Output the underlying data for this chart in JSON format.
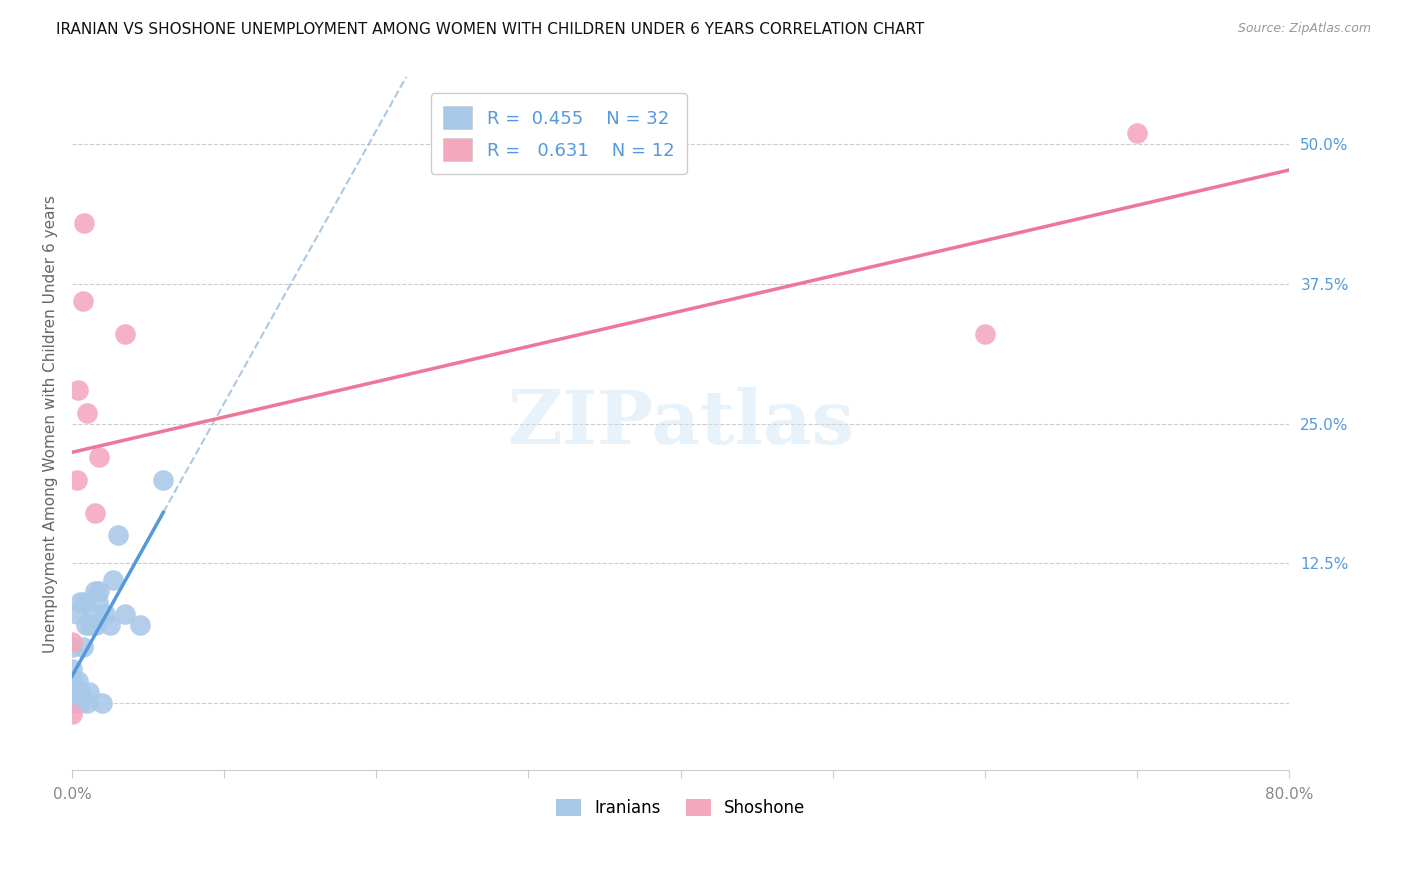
{
  "title": "IRANIAN VS SHOSHONE UNEMPLOYMENT AMONG WOMEN WITH CHILDREN UNDER 6 YEARS CORRELATION CHART",
  "source": "Source: ZipAtlas.com",
  "ylabel": "Unemployment Among Women with Children Under 6 years",
  "watermark": "ZIPatlas",
  "legend_iranian_R": "0.455",
  "legend_iranian_N": "32",
  "legend_shoshone_R": "0.631",
  "legend_shoshone_N": "12",
  "iranian_color": "#a8c8e8",
  "shoshone_color": "#f4a8be",
  "iranian_line_color": "#5599dd",
  "shoshone_line_color": "#ee7799",
  "dashed_line_color": "#99bbdd",
  "right_ytick_color": "#5599dd",
  "yticks_right": [
    0.0,
    0.125,
    0.25,
    0.375,
    0.5
  ],
  "ytick_labels_right": [
    "",
    "12.5%",
    "25.0%",
    "37.5%",
    "50.0%"
  ],
  "xlim": [
    0.0,
    0.8
  ],
  "ylim": [
    -0.06,
    0.56
  ],
  "xtick_vals": [
    0.0,
    0.1,
    0.2,
    0.3,
    0.4,
    0.5,
    0.6,
    0.7,
    0.8
  ],
  "xtick_show": [
    "0.0%",
    "",
    "",
    "",
    "",
    "",
    "",
    "",
    "80.0%"
  ],
  "iranian_x": [
    0.0,
    0.0,
    0.0,
    0.0,
    0.0,
    0.0,
    0.002,
    0.003,
    0.003,
    0.004,
    0.005,
    0.005,
    0.005,
    0.007,
    0.008,
    0.009,
    0.01,
    0.011,
    0.012,
    0.013,
    0.015,
    0.016,
    0.017,
    0.018,
    0.02,
    0.022,
    0.025,
    0.027,
    0.03,
    0.035,
    0.045,
    0.06
  ],
  "iranian_y": [
    0.0,
    0.005,
    0.01,
    0.02,
    0.03,
    0.05,
    0.0,
    0.01,
    0.08,
    0.02,
    0.0,
    0.01,
    0.09,
    0.05,
    0.09,
    0.07,
    0.0,
    0.01,
    0.07,
    0.08,
    0.1,
    0.07,
    0.09,
    0.1,
    0.0,
    0.08,
    0.07,
    0.11,
    0.15,
    0.08,
    0.07,
    0.2
  ],
  "shoshone_x": [
    0.0,
    0.0,
    0.003,
    0.004,
    0.007,
    0.008,
    0.01,
    0.015,
    0.018,
    0.035,
    0.6,
    0.7
  ],
  "shoshone_y": [
    -0.01,
    0.055,
    0.2,
    0.28,
    0.36,
    0.43,
    0.26,
    0.17,
    0.22,
    0.33,
    0.33,
    0.51
  ]
}
